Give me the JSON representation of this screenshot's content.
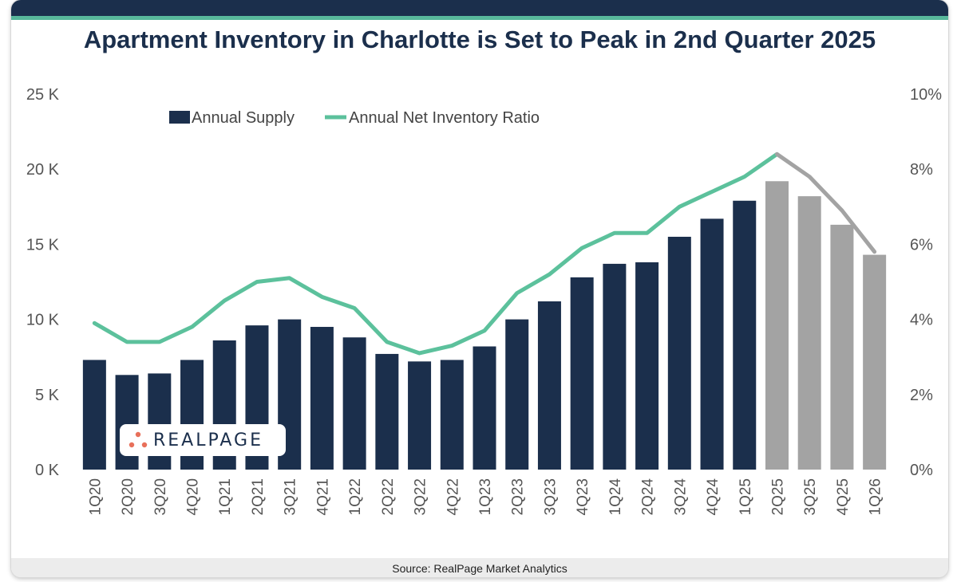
{
  "title": "Apartment Inventory in Charlotte is Set to Peak in 2nd Quarter 2025",
  "source": "Source: RealPage Market Analytics",
  "logo_text": "REALPAGE",
  "colors": {
    "header": "#1b2f4c",
    "accent": "#58b89b",
    "bar_actual": "#1b2f4c",
    "bar_forecast": "#a3a3a3",
    "line_actual": "#5cc19c",
    "line_forecast": "#a3a3a3",
    "logo_dots": "#e8705a"
  },
  "chart_data": {
    "type": "bar",
    "categories": [
      "1Q20",
      "2Q20",
      "3Q20",
      "4Q20",
      "1Q21",
      "2Q21",
      "3Q21",
      "4Q21",
      "1Q22",
      "2Q22",
      "3Q22",
      "4Q22",
      "1Q23",
      "2Q23",
      "3Q23",
      "4Q23",
      "1Q24",
      "2Q24",
      "3Q24",
      "4Q24",
      "1Q25",
      "2Q25",
      "3Q25",
      "4Q25",
      "1Q26"
    ],
    "forecast_start_index": 21,
    "series": [
      {
        "name": "Annual Supply",
        "type": "bar",
        "axis": "left",
        "values": [
          7300,
          6300,
          6400,
          7300,
          8600,
          9600,
          10000,
          9500,
          8800,
          7700,
          7200,
          7300,
          8200,
          10000,
          11200,
          12800,
          13700,
          13800,
          15500,
          16700,
          17900,
          19200,
          18200,
          16300,
          14300
        ]
      },
      {
        "name": "Annual Net Inventory Ratio",
        "type": "line",
        "axis": "right",
        "values": [
          3.9,
          3.4,
          3.4,
          3.8,
          4.5,
          5.0,
          5.1,
          4.6,
          4.3,
          3.4,
          3.1,
          3.3,
          3.7,
          4.7,
          5.2,
          5.9,
          6.3,
          6.3,
          7.0,
          7.4,
          7.8,
          8.4,
          7.8,
          6.9,
          5.8
        ]
      }
    ],
    "left_axis": {
      "ticks": [
        "0 K",
        "5 K",
        "10 K",
        "15 K",
        "20 K",
        "25 K"
      ],
      "range": [
        0,
        25000
      ]
    },
    "right_axis": {
      "ticks": [
        "0%",
        "2%",
        "4%",
        "6%",
        "8%",
        "10%"
      ],
      "range": [
        0,
        10
      ]
    },
    "legend_position": "top-left",
    "grid": false
  }
}
